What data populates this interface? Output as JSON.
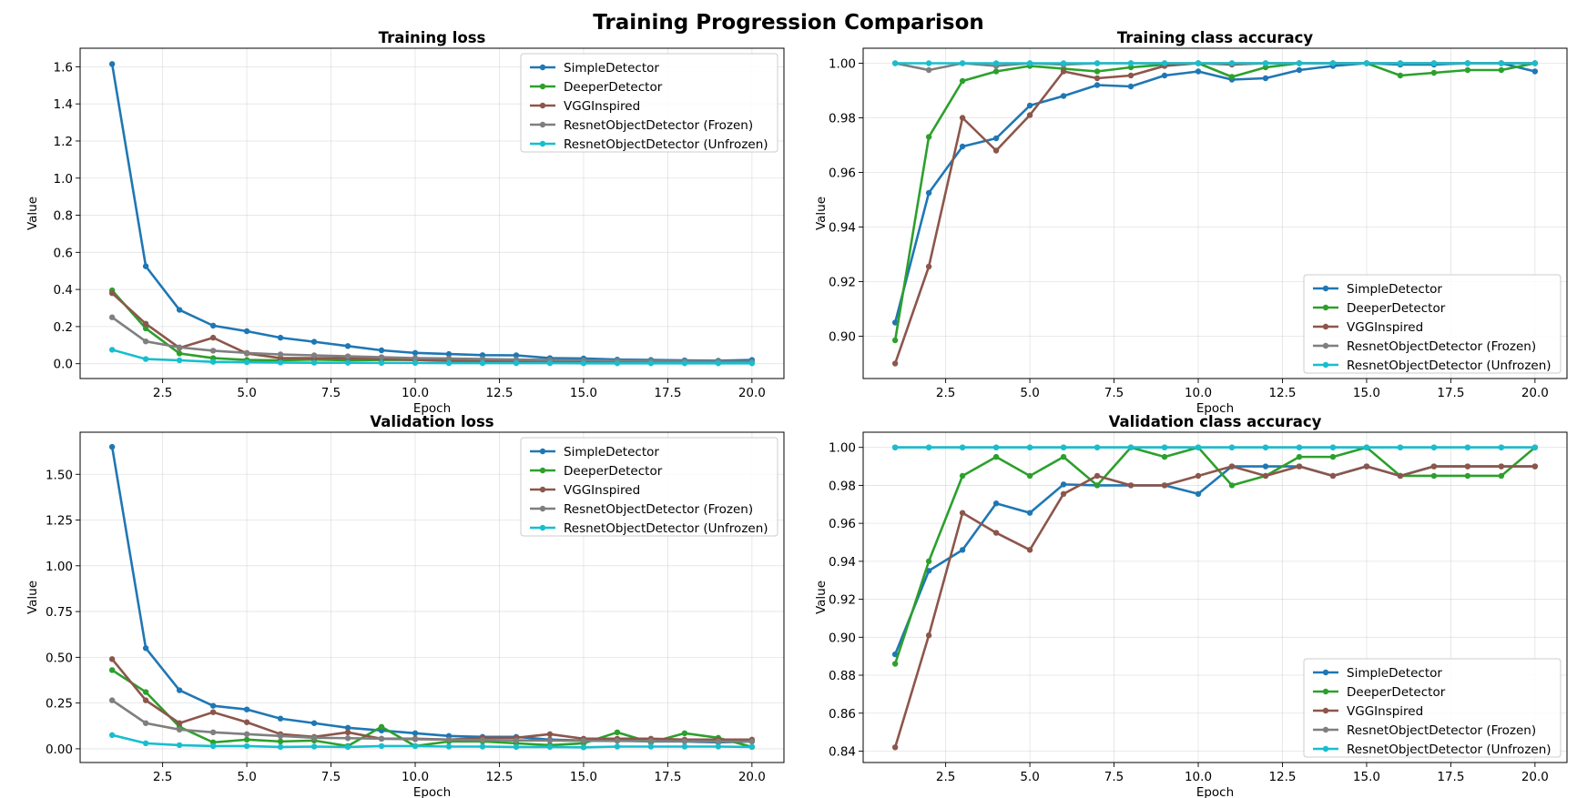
{
  "figure": {
    "title": "Training Progression Comparison"
  },
  "colors": {
    "SimpleDetector": "#1f77b4",
    "DeeperDetector": "#2ca02c",
    "VGGInspired": "#8c564b",
    "ResnetObjectDetector (Frozen)": "#7f7f7f",
    "ResnetObjectDetector (Unfrozen)": "#17becf"
  },
  "chart_data": [
    {
      "type": "line",
      "title": "Training loss",
      "xlabel": "Epoch",
      "ylabel": "Value",
      "x": [
        1,
        2,
        3,
        4,
        5,
        6,
        7,
        8,
        9,
        10,
        11,
        12,
        13,
        14,
        15,
        16,
        17,
        18,
        19,
        20
      ],
      "xlim": [
        0.05,
        20.95
      ],
      "ylim": [
        -0.08,
        1.7
      ],
      "xticks": [
        2.5,
        5.0,
        7.5,
        10.0,
        12.5,
        15.0,
        17.5,
        20.0
      ],
      "yticks": [
        0.0,
        0.2,
        0.4,
        0.6,
        0.8,
        1.0,
        1.2,
        1.4,
        1.6
      ],
      "tick_decimals": 1,
      "grid": true,
      "legend": "upper right",
      "series": [
        {
          "name": "SimpleDetector",
          "values": [
            1.615,
            0.525,
            0.29,
            0.205,
            0.175,
            0.14,
            0.118,
            0.095,
            0.072,
            0.058,
            0.052,
            0.046,
            0.045,
            0.03,
            0.028,
            0.022,
            0.02,
            0.018,
            0.016,
            0.02
          ]
        },
        {
          "name": "DeeperDetector",
          "values": [
            0.395,
            0.19,
            0.055,
            0.03,
            0.02,
            0.018,
            0.022,
            0.018,
            0.02,
            0.02,
            0.018,
            0.015,
            0.014,
            0.014,
            0.016,
            0.012,
            0.012,
            0.01,
            0.01,
            0.01
          ]
        },
        {
          "name": "VGGInspired",
          "values": [
            0.38,
            0.215,
            0.085,
            0.14,
            0.055,
            0.03,
            0.03,
            0.03,
            0.025,
            0.02,
            0.015,
            0.012,
            0.012,
            0.012,
            0.012,
            0.01,
            0.01,
            0.008,
            0.008,
            0.008
          ]
        },
        {
          "name": "ResnetObjectDetector (Frozen)",
          "values": [
            0.25,
            0.12,
            0.088,
            0.07,
            0.058,
            0.05,
            0.045,
            0.04,
            0.035,
            0.03,
            0.028,
            0.025,
            0.022,
            0.02,
            0.018,
            0.016,
            0.015,
            0.013,
            0.012,
            0.01
          ]
        },
        {
          "name": "ResnetObjectDetector (Unfrozen)",
          "values": [
            0.075,
            0.025,
            0.018,
            0.01,
            0.008,
            0.006,
            0.005,
            0.005,
            0.004,
            0.004,
            0.003,
            0.003,
            0.003,
            0.003,
            0.002,
            0.002,
            0.002,
            0.002,
            0.002,
            0.002
          ]
        }
      ]
    },
    {
      "type": "line",
      "title": "Training class accuracy",
      "xlabel": "Epoch",
      "ylabel": "Value",
      "x": [
        1,
        2,
        3,
        4,
        5,
        6,
        7,
        8,
        9,
        10,
        11,
        12,
        13,
        14,
        15,
        16,
        17,
        18,
        19,
        20
      ],
      "xlim": [
        0.05,
        20.95
      ],
      "ylim": [
        0.8845,
        1.0055
      ],
      "xticks": [
        2.5,
        5.0,
        7.5,
        10.0,
        12.5,
        15.0,
        17.5,
        20.0
      ],
      "yticks": [
        0.9,
        0.92,
        0.94,
        0.96,
        0.98,
        1.0
      ],
      "tick_decimals": 2,
      "grid": true,
      "legend": "lower right",
      "series": [
        {
          "name": "SimpleDetector",
          "values": [
            0.905,
            0.9525,
            0.9695,
            0.9725,
            0.9845,
            0.988,
            0.992,
            0.9915,
            0.9955,
            0.997,
            0.994,
            0.9945,
            0.9975,
            0.999,
            1.0,
            0.9995,
            0.9995,
            1.0,
            1.0,
            0.997
          ]
        },
        {
          "name": "DeeperDetector",
          "values": [
            0.8985,
            0.973,
            0.9935,
            0.997,
            0.999,
            0.998,
            0.997,
            0.9985,
            0.9995,
            1.0,
            0.995,
            0.9985,
            1.0,
            1.0,
            1.0,
            0.9955,
            0.9965,
            0.9975,
            0.9975,
            1.0
          ]
        },
        {
          "name": "VGGInspired",
          "values": [
            0.89,
            0.9255,
            0.98,
            0.968,
            0.981,
            0.997,
            0.9945,
            0.9955,
            0.999,
            1.0,
            0.9995,
            1.0,
            1.0,
            1.0,
            1.0,
            1.0,
            1.0,
            1.0,
            1.0,
            1.0
          ]
        },
        {
          "name": "ResnetObjectDetector (Frozen)",
          "values": [
            1.0,
            0.9975,
            1.0,
            0.999,
            1.0,
            0.9995,
            1.0,
            1.0,
            1.0,
            1.0,
            1.0,
            1.0,
            1.0,
            1.0,
            1.0,
            1.0,
            1.0,
            1.0,
            1.0,
            1.0
          ]
        },
        {
          "name": "ResnetObjectDetector (Unfrozen)",
          "values": [
            1.0,
            1.0,
            1.0,
            1.0,
            1.0,
            1.0,
            1.0,
            1.0,
            1.0,
            1.0,
            1.0,
            1.0,
            1.0,
            1.0,
            1.0,
            1.0,
            1.0,
            1.0,
            1.0,
            1.0
          ]
        }
      ]
    },
    {
      "type": "line",
      "title": "Validation loss",
      "xlabel": "Epoch",
      "ylabel": "Value",
      "x": [
        1,
        2,
        3,
        4,
        5,
        6,
        7,
        8,
        9,
        10,
        11,
        12,
        13,
        14,
        15,
        16,
        17,
        18,
        19,
        20
      ],
      "xlim": [
        0.05,
        20.95
      ],
      "ylim": [
        -0.075,
        1.73
      ],
      "xticks": [
        2.5,
        5.0,
        7.5,
        10.0,
        12.5,
        15.0,
        17.5,
        20.0
      ],
      "yticks": [
        0.0,
        0.25,
        0.5,
        0.75,
        1.0,
        1.25,
        1.5
      ],
      "tick_decimals": 2,
      "grid": true,
      "legend": "upper right",
      "series": [
        {
          "name": "SimpleDetector",
          "values": [
            1.65,
            0.55,
            0.32,
            0.235,
            0.215,
            0.165,
            0.14,
            0.115,
            0.1,
            0.085,
            0.07,
            0.065,
            0.065,
            0.05,
            0.045,
            0.045,
            0.04,
            0.04,
            0.035,
            0.04
          ]
        },
        {
          "name": "DeeperDetector",
          "values": [
            0.43,
            0.31,
            0.12,
            0.035,
            0.05,
            0.04,
            0.045,
            0.015,
            0.12,
            0.015,
            0.04,
            0.04,
            0.03,
            0.02,
            0.03,
            0.09,
            0.035,
            0.085,
            0.06,
            0.01
          ]
        },
        {
          "name": "VGGInspired",
          "values": [
            0.49,
            0.265,
            0.14,
            0.2,
            0.145,
            0.08,
            0.065,
            0.09,
            0.055,
            0.055,
            0.05,
            0.06,
            0.06,
            0.08,
            0.055,
            0.055,
            0.055,
            0.05,
            0.05,
            0.05
          ]
        },
        {
          "name": "ResnetObjectDetector (Frozen)",
          "values": [
            0.265,
            0.14,
            0.105,
            0.09,
            0.08,
            0.07,
            0.06,
            0.058,
            0.055,
            0.052,
            0.05,
            0.048,
            0.046,
            0.045,
            0.044,
            0.043,
            0.042,
            0.041,
            0.04,
            0.04
          ]
        },
        {
          "name": "ResnetObjectDetector (Unfrozen)",
          "values": [
            0.075,
            0.03,
            0.02,
            0.015,
            0.015,
            0.01,
            0.012,
            0.01,
            0.015,
            0.015,
            0.012,
            0.012,
            0.01,
            0.01,
            0.008,
            0.012,
            0.012,
            0.012,
            0.012,
            0.01
          ]
        }
      ]
    },
    {
      "type": "line",
      "title": "Validation class accuracy",
      "xlabel": "Epoch",
      "ylabel": "Value",
      "x": [
        1,
        2,
        3,
        4,
        5,
        6,
        7,
        8,
        9,
        10,
        11,
        12,
        13,
        14,
        15,
        16,
        17,
        18,
        19,
        20
      ],
      "xlim": [
        0.05,
        20.95
      ],
      "ylim": [
        0.834,
        1.008
      ],
      "xticks": [
        2.5,
        5.0,
        7.5,
        10.0,
        12.5,
        15.0,
        17.5,
        20.0
      ],
      "yticks": [
        0.84,
        0.86,
        0.88,
        0.9,
        0.92,
        0.94,
        0.96,
        0.98,
        1.0
      ],
      "tick_decimals": 2,
      "grid": true,
      "legend": "lower right",
      "series": [
        {
          "name": "SimpleDetector",
          "values": [
            0.891,
            0.935,
            0.946,
            0.9705,
            0.9655,
            0.9805,
            0.98,
            0.98,
            0.98,
            0.9755,
            0.99,
            0.99,
            0.99,
            0.985,
            0.99,
            0.985,
            0.99,
            0.99,
            0.99,
            0.99
          ]
        },
        {
          "name": "DeeperDetector",
          "values": [
            0.886,
            0.94,
            0.985,
            0.995,
            0.985,
            0.995,
            0.98,
            1.0,
            0.995,
            1.0,
            0.98,
            0.985,
            0.995,
            0.995,
            1.0,
            0.985,
            0.985,
            0.985,
            0.985,
            1.0
          ]
        },
        {
          "name": "VGGInspired",
          "values": [
            0.842,
            0.901,
            0.9655,
            0.955,
            0.946,
            0.9755,
            0.985,
            0.98,
            0.98,
            0.985,
            0.99,
            0.985,
            0.99,
            0.985,
            0.99,
            0.985,
            0.99,
            0.99,
            0.99,
            0.99
          ]
        },
        {
          "name": "ResnetObjectDetector (Frozen)",
          "values": [
            1.0,
            1.0,
            1.0,
            1.0,
            1.0,
            1.0,
            1.0,
            1.0,
            1.0,
            1.0,
            1.0,
            1.0,
            1.0,
            1.0,
            1.0,
            1.0,
            1.0,
            1.0,
            1.0,
            1.0
          ]
        },
        {
          "name": "ResnetObjectDetector (Unfrozen)",
          "values": [
            1.0,
            1.0,
            1.0,
            1.0,
            1.0,
            1.0,
            1.0,
            1.0,
            1.0,
            1.0,
            1.0,
            1.0,
            1.0,
            1.0,
            1.0,
            1.0,
            1.0,
            1.0,
            1.0,
            1.0
          ]
        }
      ]
    }
  ]
}
